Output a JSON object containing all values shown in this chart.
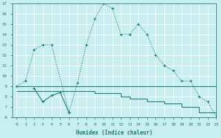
{
  "line1_x": [
    0,
    1,
    2,
    3,
    4,
    6,
    7,
    8,
    9,
    10,
    11,
    12,
    13,
    14,
    15,
    16,
    17,
    18,
    19,
    20,
    21,
    22,
    23
  ],
  "line1_y": [
    9.0,
    9.5,
    12.5,
    13.0,
    13.0,
    6.5,
    9.3,
    13.0,
    15.5,
    17.0,
    16.5,
    14.0,
    14.0,
    15.0,
    14.0,
    12.0,
    11.0,
    10.5,
    9.5,
    9.5,
    8.0,
    7.5,
    6.0
  ],
  "line2_x": [
    0,
    1,
    3,
    6,
    7,
    8,
    9,
    10,
    11,
    12,
    13,
    14,
    15,
    16,
    17,
    18,
    19,
    20,
    21,
    22,
    23
  ],
  "line2_y": [
    9.0,
    9.0,
    9.0,
    9.0,
    9.0,
    9.0,
    9.0,
    9.0,
    9.0,
    9.0,
    9.0,
    9.0,
    9.0,
    9.0,
    9.0,
    9.0,
    9.0,
    9.0,
    9.0,
    9.0,
    9.0
  ],
  "line3_x": [
    0,
    6,
    7,
    8,
    9,
    10,
    11,
    12,
    13,
    14,
    15,
    16,
    17,
    18,
    19,
    20,
    21,
    22,
    23
  ],
  "line3_y": [
    8.5,
    8.5,
    8.5,
    8.5,
    8.3,
    8.3,
    8.3,
    8.0,
    7.8,
    7.8,
    7.5,
    7.5,
    7.3,
    7.3,
    7.0,
    7.0,
    6.5,
    6.5,
    6.0
  ],
  "line4_x": [
    2,
    3,
    4,
    5,
    6
  ],
  "line4_y": [
    8.8,
    7.5,
    8.1,
    8.4,
    6.5
  ],
  "color": "#1a7a6e",
  "bg_color": "#c8eef0",
  "grid_color": "#ffffff",
  "xlabel": "Humidex (Indice chaleur)",
  "xlim": [
    -0.5,
    23
  ],
  "ylim": [
    6,
    17
  ],
  "yticks": [
    6,
    7,
    8,
    9,
    10,
    11,
    12,
    13,
    14,
    15,
    16,
    17
  ],
  "xticks": [
    0,
    1,
    2,
    3,
    4,
    5,
    6,
    7,
    8,
    9,
    10,
    11,
    12,
    13,
    14,
    15,
    16,
    17,
    18,
    19,
    20,
    21,
    22,
    23
  ]
}
